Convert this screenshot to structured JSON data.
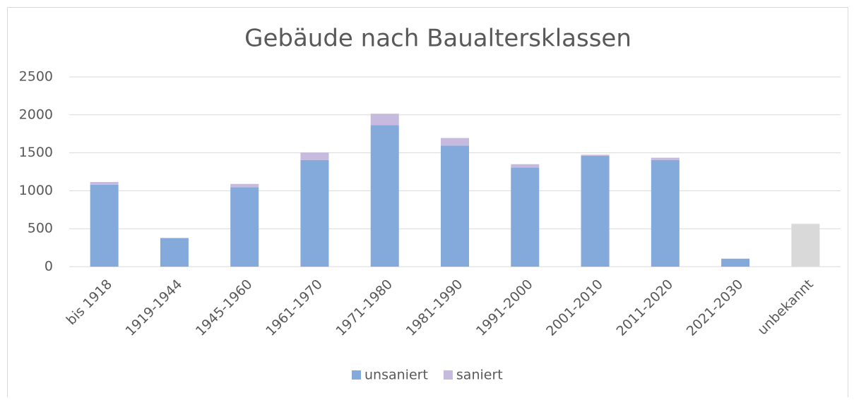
{
  "chart_data": {
    "type": "stacked_bar",
    "title": "Gebäude nach Baualtersklassen",
    "categories": [
      "bis 1918",
      "1919-1944",
      "1945-1960",
      "1961-1970",
      "1971-1980",
      "1981-1990",
      "1991-2000",
      "2001-2010",
      "2011-2020",
      "2021-2030",
      "unbekannt"
    ],
    "series": [
      {
        "name": "unsaniert",
        "color": "#84a9db",
        "colors": [
          "#84a9db",
          "#84a9db",
          "#84a9db",
          "#84a9db",
          "#84a9db",
          "#84a9db",
          "#84a9db",
          "#84a9db",
          "#84a9db",
          "#84a9db",
          "#d9d9d9"
        ],
        "values": [
          1080,
          375,
          1045,
          1405,
          1865,
          1595,
          1305,
          1460,
          1405,
          105,
          555
        ]
      },
      {
        "name": "saniert",
        "color": "#c6bbde",
        "colors": [
          "#c6bbde",
          "#c6bbde",
          "#c6bbde",
          "#c6bbde",
          "#c6bbde",
          "#c6bbde",
          "#c6bbde",
          "#c6bbde",
          "#c6bbde",
          "#c6bbde",
          "#d9d9d9"
        ],
        "values": [
          35,
          5,
          45,
          100,
          150,
          100,
          45,
          15,
          30,
          0,
          10
        ]
      }
    ],
    "ylim": [
      0,
      2500
    ],
    "yticks": [
      0,
      500,
      1000,
      1500,
      2000,
      2500
    ],
    "grid": true,
    "legend": "bottom"
  }
}
